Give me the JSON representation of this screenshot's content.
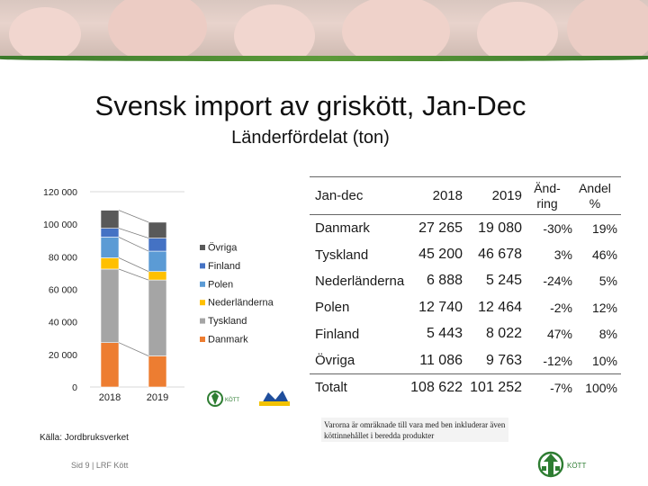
{
  "slide": {
    "title": "Svensk import av griskött, Jan-Dec",
    "subtitle": "Länderfördelat (ton)",
    "source": "Källa: Jordbruksverket",
    "footer": "Sid 9 | LRF Kött",
    "note": "Varorna är omräknade till vara med ben inkluderar även köttinnehållet i beredda produkter",
    "logo_text": "KÖTT"
  },
  "colors": {
    "danmark": "#ed7d31",
    "tyskland": "#a5a5a5",
    "nederlanderna": "#ffc000",
    "polen": "#5b9bd5",
    "finland": "#4472c4",
    "ovriga": "#595959",
    "logo_green": "#2e7d32"
  },
  "chart_data": {
    "type": "bar",
    "stacked": true,
    "categories": [
      "2018",
      "2019"
    ],
    "ylim": [
      0,
      120000
    ],
    "yticks": [
      "0",
      "20 000",
      "40 000",
      "60 000",
      "80 000",
      "100 000",
      "120 000"
    ],
    "legend_position": "right",
    "series": [
      {
        "name": "Danmark",
        "values": [
          27265,
          19080
        ]
      },
      {
        "name": "Tyskland",
        "values": [
          45200,
          46678
        ]
      },
      {
        "name": "Nederländerna",
        "values": [
          6888,
          5245
        ]
      },
      {
        "name": "Polen",
        "values": [
          12740,
          12464
        ]
      },
      {
        "name": "Finland",
        "values": [
          5443,
          8022
        ]
      },
      {
        "name": "Övriga",
        "values": [
          11086,
          9763
        ]
      }
    ]
  },
  "table": {
    "headers": [
      "Jan-dec",
      "2018",
      "2019",
      "Änd-\nring",
      "Andel\n%"
    ],
    "rows": [
      [
        "Danmark",
        "27 265",
        "19 080",
        "-30%",
        "19%"
      ],
      [
        "Tyskland",
        "45 200",
        "46 678",
        "3%",
        "46%"
      ],
      [
        "Nederländerna",
        "6 888",
        "5 245",
        "-24%",
        "5%"
      ],
      [
        "Polen",
        "12 740",
        "12 464",
        "-2%",
        "12%"
      ],
      [
        "Finland",
        "5 443",
        "8 022",
        "47%",
        "8%"
      ],
      [
        "Övriga",
        "11 086",
        "9 763",
        "-12%",
        "10%"
      ],
      [
        "Totalt",
        "108 622",
        "101 252",
        "-7%",
        "100%"
      ]
    ]
  }
}
